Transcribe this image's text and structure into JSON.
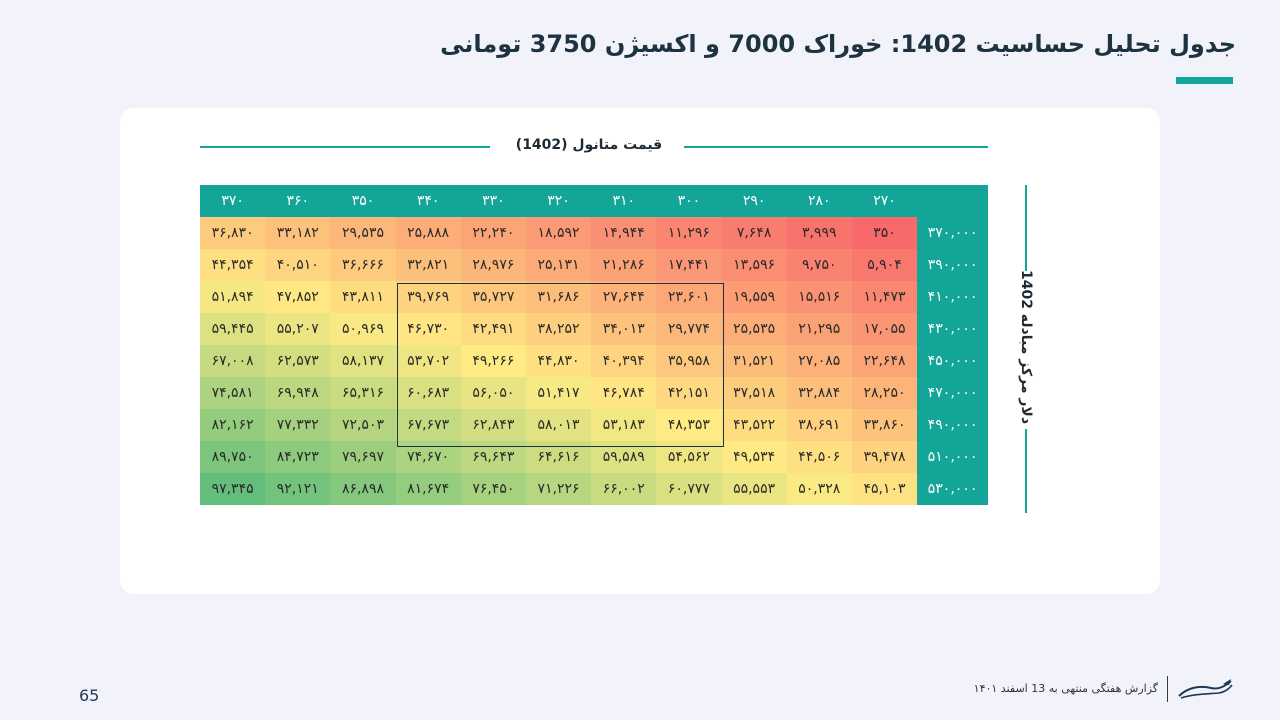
{
  "title": "جدول تحلیل حساسیت 1402: خوراک 7000 و اکسیژن 3750 تومانی",
  "colors": {
    "accent": "#13a597",
    "low": "#f8696b",
    "mid": "#ffeb84",
    "high": "#63be7b",
    "highlight_box": "#1d3340"
  },
  "chart_data": {
    "type": "heatmap",
    "xlabel": "قیمت متانول (1402)",
    "ylabel": "دلار مرکز مبادله 1402",
    "x_ticks": [
      "۲۷۰",
      "۲۸۰",
      "۲۹۰",
      "۳۰۰",
      "۳۱۰",
      "۳۲۰",
      "۳۳۰",
      "۳۴۰",
      "۳۵۰",
      "۳۶۰",
      "۳۷۰"
    ],
    "y_ticks": [
      "۳۷۰,۰۰۰",
      "۳۹۰,۰۰۰",
      "۴۱۰,۰۰۰",
      "۴۳۰,۰۰۰",
      "۴۵۰,۰۰۰",
      "۴۷۰,۰۰۰",
      "۴۹۰,۰۰۰",
      "۵۱۰,۰۰۰",
      "۵۳۰,۰۰۰"
    ],
    "x": [
      270,
      280,
      290,
      300,
      310,
      320,
      330,
      340,
      350,
      360,
      370
    ],
    "y": [
      370000,
      390000,
      410000,
      430000,
      450000,
      470000,
      490000,
      510000,
      530000
    ],
    "values": [
      [
        350,
        3999,
        7648,
        11296,
        14944,
        18592,
        22240,
        25888,
        29535,
        33182,
        36830
      ],
      [
        5904,
        9750,
        13596,
        17441,
        21286,
        25131,
        28976,
        32821,
        36666,
        40510,
        44354
      ],
      [
        11473,
        15516,
        19559,
        23601,
        27644,
        31686,
        35727,
        39769,
        43811,
        47852,
        51894
      ],
      [
        17055,
        21295,
        25535,
        29774,
        34013,
        38252,
        42491,
        46730,
        50969,
        55207,
        59445
      ],
      [
        22648,
        27085,
        31521,
        35958,
        40394,
        44830,
        49266,
        53702,
        58137,
        62573,
        67008
      ],
      [
        28250,
        32884,
        37518,
        42151,
        46784,
        51417,
        56050,
        60683,
        65316,
        69948,
        74581
      ],
      [
        33860,
        38691,
        43522,
        48353,
        53183,
        58013,
        62843,
        67673,
        72503,
        77332,
        82162
      ],
      [
        39478,
        44506,
        49534,
        54562,
        59589,
        64616,
        69643,
        74670,
        79697,
        84723,
        89750
      ],
      [
        45103,
        50328,
        55553,
        60777,
        66002,
        71226,
        76450,
        81674,
        86898,
        92121,
        97345
      ]
    ],
    "cell_labels": [
      [
        "۳۵۰",
        "۳,۹۹۹",
        "۷,۶۴۸",
        "۱۱,۲۹۶",
        "۱۴,۹۴۴",
        "۱۸,۵۹۲",
        "۲۲,۲۴۰",
        "۲۵,۸۸۸",
        "۲۹,۵۳۵",
        "۳۳,۱۸۲",
        "۳۶,۸۳۰"
      ],
      [
        "۵,۹۰۴",
        "۹,۷۵۰",
        "۱۳,۵۹۶",
        "۱۷,۴۴۱",
        "۲۱,۲۸۶",
        "۲۵,۱۳۱",
        "۲۸,۹۷۶",
        "۳۲,۸۲۱",
        "۳۶,۶۶۶",
        "۴۰,۵۱۰",
        "۴۴,۳۵۴"
      ],
      [
        "۱۱,۴۷۳",
        "۱۵,۵۱۶",
        "۱۹,۵۵۹",
        "۲۳,۶۰۱",
        "۲۷,۶۴۴",
        "۳۱,۶۸۶",
        "۳۵,۷۲۷",
        "۳۹,۷۶۹",
        "۴۳,۸۱۱",
        "۴۷,۸۵۲",
        "۵۱,۸۹۴"
      ],
      [
        "۱۷,۰۵۵",
        "۲۱,۲۹۵",
        "۲۵,۵۳۵",
        "۲۹,۷۷۴",
        "۳۴,۰۱۳",
        "۳۸,۲۵۲",
        "۴۲,۴۹۱",
        "۴۶,۷۳۰",
        "۵۰,۹۶۹",
        "۵۵,۲۰۷",
        "۵۹,۴۴۵"
      ],
      [
        "۲۲,۶۴۸",
        "۲۷,۰۸۵",
        "۳۱,۵۲۱",
        "۳۵,۹۵۸",
        "۴۰,۳۹۴",
        "۴۴,۸۳۰",
        "۴۹,۲۶۶",
        "۵۳,۷۰۲",
        "۵۸,۱۳۷",
        "۶۲,۵۷۳",
        "۶۷,۰۰۸"
      ],
      [
        "۲۸,۲۵۰",
        "۳۲,۸۸۴",
        "۳۷,۵۱۸",
        "۴۲,۱۵۱",
        "۴۶,۷۸۴",
        "۵۱,۴۱۷",
        "۵۶,۰۵۰",
        "۶۰,۶۸۳",
        "۶۵,۳۱۶",
        "۶۹,۹۴۸",
        "۷۴,۵۸۱"
      ],
      [
        "۳۳,۸۶۰",
        "۳۸,۶۹۱",
        "۴۳,۵۲۲",
        "۴۸,۳۵۳",
        "۵۳,۱۸۳",
        "۵۸,۰۱۳",
        "۶۲,۸۴۳",
        "۶۷,۶۷۳",
        "۷۲,۵۰۳",
        "۷۷,۳۳۲",
        "۸۲,۱۶۲"
      ],
      [
        "۳۹,۴۷۸",
        "۴۴,۵۰۶",
        "۴۹,۵۳۴",
        "۵۴,۵۶۲",
        "۵۹,۵۸۹",
        "۶۴,۶۱۶",
        "۶۹,۶۴۳",
        "۷۴,۶۷۰",
        "۷۹,۶۹۷",
        "۸۴,۷۲۳",
        "۸۹,۷۵۰"
      ],
      [
        "۴۵,۱۰۳",
        "۵۰,۳۲۸",
        "۵۵,۵۵۳",
        "۶۰,۷۷۷",
        "۶۶,۰۰۲",
        "۷۱,۲۲۶",
        "۷۶,۴۵۰",
        "۸۱,۶۷۴",
        "۸۶,۸۹۸",
        "۹۲,۱۲۱",
        "۹۷,۳۴۵"
      ]
    ],
    "highlight_range": {
      "x_from": 300,
      "x_to": 340,
      "y_from": 410000,
      "y_to": 490000
    }
  },
  "footer": {
    "page_number": "65",
    "report_text": "گزارش هفتگی منتهی به 13 اسفند ۱۴۰۱",
    "logo_icon": "brand-logo-icon"
  }
}
